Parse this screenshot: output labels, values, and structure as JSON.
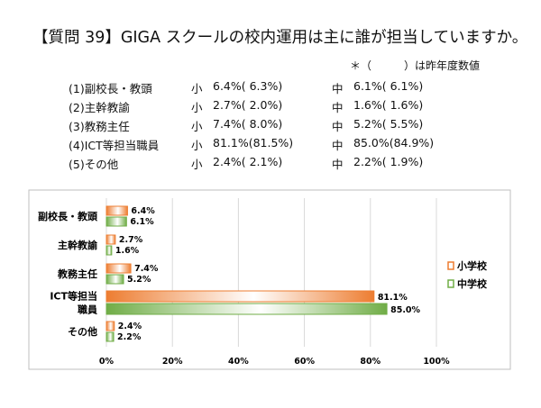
{
  "title": "【質問 39】GIGA スクールの校内運用は主に誰が担当していますか。",
  "note": "＊（　　　）は昨年度数値",
  "rows": [
    {
      "label": "(1)副校長・教頭",
      "sho_mark": "小",
      "sho": "6.4%( 6.3%)",
      "chu_mark": "中",
      "chu": "6.1%( 6.1%)"
    },
    {
      "label": "(2)主幹教諭",
      "sho_mark": "小",
      "sho": "2.7%( 2.0%)",
      "chu_mark": "中",
      "chu": "1.6%( 1.6%)"
    },
    {
      "label": "(3)教務主任",
      "sho_mark": "小",
      "sho": "7.4%( 8.0%)",
      "chu_mark": "中",
      "chu": "5.2%( 5.5%)"
    },
    {
      "label": "(4)ICT等担当職員",
      "sho_mark": "小",
      "sho": "81.1%(81.5%)",
      "chu_mark": "中",
      "chu": "85.0%(84.9%)"
    },
    {
      "label": "(5)その他",
      "sho_mark": "小",
      "sho": "2.4%( 2.1%)",
      "chu_mark": "中",
      "chu": "2.2%( 1.9%)"
    }
  ],
  "chart_data": {
    "type": "bar",
    "orientation": "horizontal",
    "categories": [
      [
        "副校長・教頭"
      ],
      [
        "主幹教諭"
      ],
      [
        "教務主任"
      ],
      [
        "ICT等担当",
        "職員"
      ],
      [
        "その他"
      ]
    ],
    "series": [
      {
        "name": "小学校",
        "values": [
          6.4,
          2.7,
          7.4,
          81.1,
          2.4
        ],
        "color": "#ED7D31",
        "labels": [
          "6.4%",
          "2.7%",
          "7.4%",
          "81.1%",
          "2.4%"
        ]
      },
      {
        "name": "中学校",
        "values": [
          6.1,
          1.6,
          5.2,
          85.0,
          2.2
        ],
        "color": "#70AD47",
        "labels": [
          "6.1%",
          "1.6%",
          "5.2%",
          "85.0%",
          "2.2%"
        ]
      }
    ],
    "xlim": [
      0,
      100
    ],
    "xticks": [
      "0%",
      "20%",
      "40%",
      "60%",
      "80%",
      "100%"
    ],
    "grid": true,
    "legend": "right"
  }
}
